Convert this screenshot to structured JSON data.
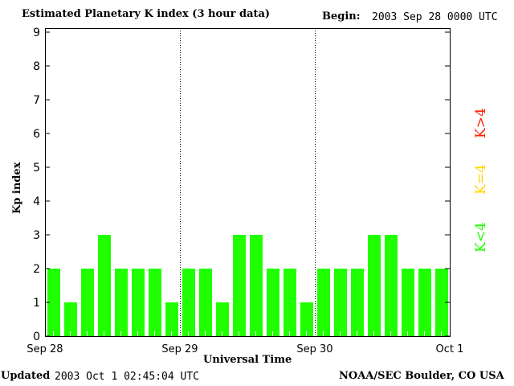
{
  "header": {
    "title": "Estimated Planetary K index (3 hour data)",
    "begin_label": "Begin:",
    "begin_value": "2003 Sep 28 0000 UTC"
  },
  "footer": {
    "updated_label": "Updated",
    "updated_value": "2003 Oct  1 02:45:04 UTC",
    "source": "NOAA/SEC Boulder, CO USA"
  },
  "legend": {
    "items": [
      {
        "label": "K>4",
        "color": "#ff2000"
      },
      {
        "label": "K=4",
        "color": "#ffd800"
      },
      {
        "label": "K<4",
        "color": "#20ff00"
      }
    ]
  },
  "chart_data": {
    "type": "bar",
    "title": "Estimated Planetary K index (3 hour data)",
    "xlabel": "Universal Time",
    "ylabel": "Kp index",
    "ylim": [
      0,
      9
    ],
    "yticks": [
      "0",
      "1",
      "2",
      "3",
      "4",
      "5",
      "6",
      "7",
      "8",
      "9"
    ],
    "xtick_labels": [
      "Sep 28",
      "Sep 29",
      "Sep 30",
      "Oct 1"
    ],
    "bar_color": "#20ff00",
    "values": [
      2,
      1,
      2,
      3,
      2,
      2,
      2,
      1,
      2,
      2,
      1,
      3,
      3,
      2,
      2,
      1,
      2,
      2,
      2,
      3,
      3,
      2,
      2,
      2
    ],
    "day_separators": "dotted"
  }
}
